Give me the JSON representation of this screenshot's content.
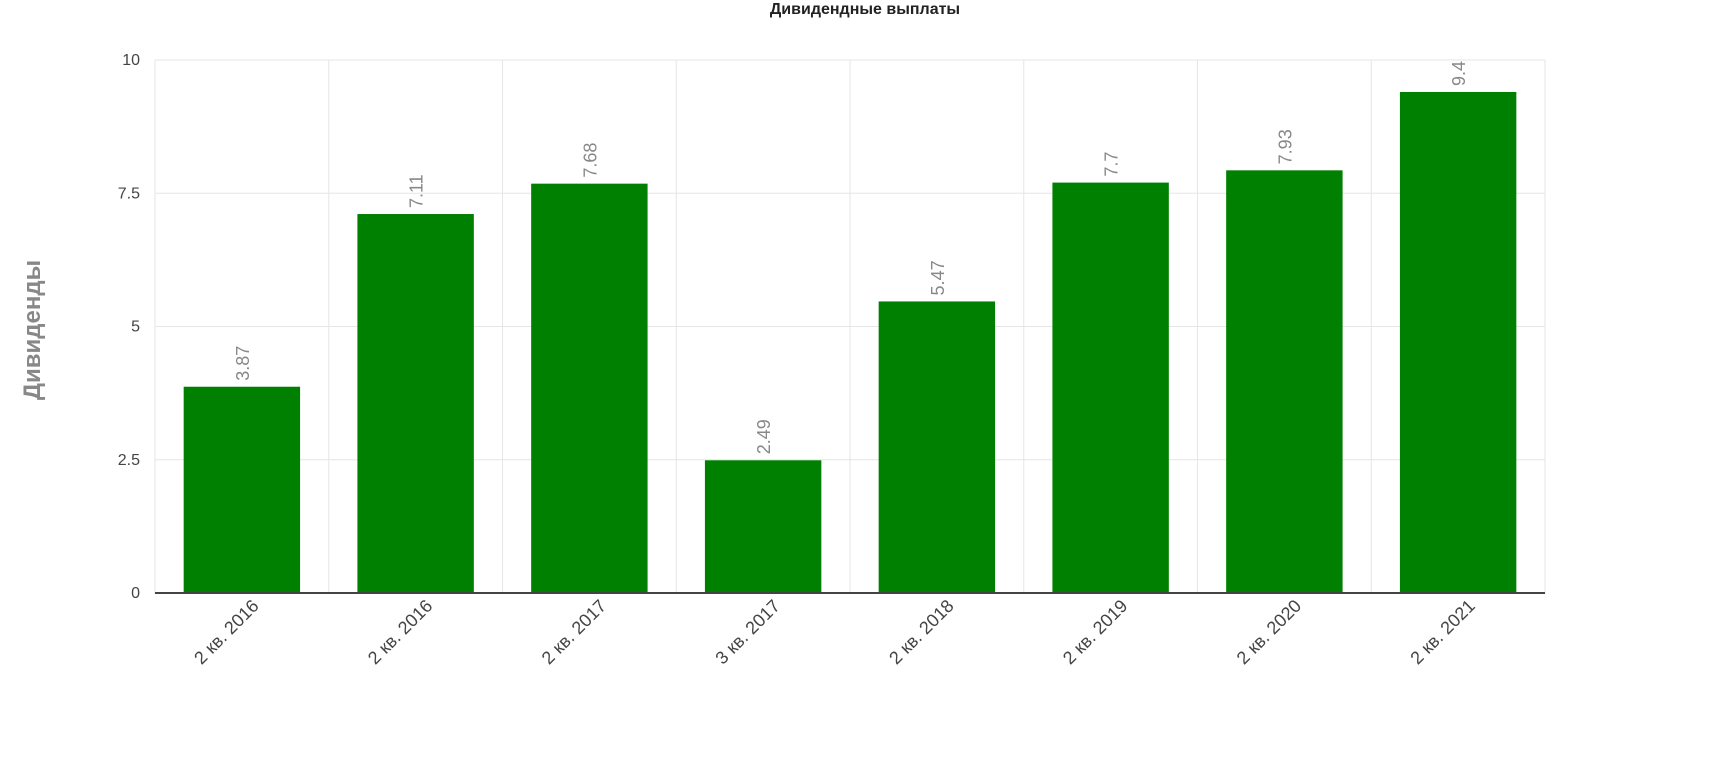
{
  "chart_data": {
    "type": "bar",
    "title": "Дивидендные выплаты",
    "y_label": "Дивиденды",
    "categories": [
      "2 кв. 2016",
      "2 кв. 2016",
      "2 кв. 2017",
      "3 кв. 2017",
      "2 кв. 2018",
      "2 кв. 2019",
      "2 кв. 2020",
      "2 кв. 2021"
    ],
    "values": [
      3.87,
      7.11,
      7.68,
      2.49,
      5.47,
      7.7,
      7.93,
      9.4
    ],
    "color": "#008000",
    "ylim": [
      0,
      10
    ],
    "yticks": [
      0,
      2.5,
      5,
      7.5,
      10
    ],
    "grid": true
  }
}
